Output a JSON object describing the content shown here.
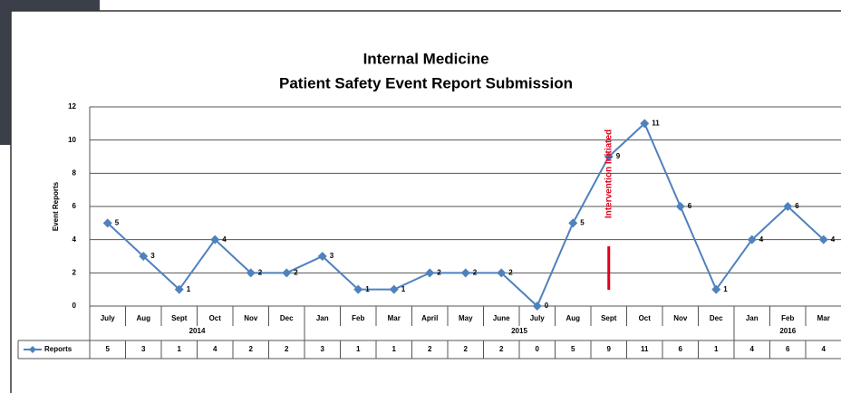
{
  "chart_data": {
    "type": "line",
    "title": "Internal Medicine",
    "subtitle": "Patient Safety Event Report Submission",
    "ylabel": "Event Reports",
    "groups": [
      {
        "name": "2014",
        "categories": [
          "July",
          "Aug",
          "Sept",
          "Oct",
          "Nov",
          "Dec"
        ]
      },
      {
        "name": "2015",
        "categories": [
          "Jan",
          "Feb",
          "Mar",
          "April",
          "May",
          "June",
          "July",
          "Aug",
          "Sept",
          "Oct",
          "Nov",
          "Dec"
        ]
      },
      {
        "name": "2016",
        "categories": [
          "Jan",
          "Feb",
          "Mar"
        ]
      }
    ],
    "series": [
      {
        "name": "Reports",
        "color": "#4f81bd",
        "values": [
          5,
          3,
          1,
          4,
          2,
          2,
          3,
          1,
          1,
          2,
          2,
          2,
          0,
          5,
          9,
          11,
          6,
          1,
          4,
          6,
          4
        ]
      }
    ],
    "ylim": [
      0,
      12
    ],
    "yticks": [
      0,
      2,
      4,
      6,
      8,
      10,
      12
    ],
    "grid": true,
    "annotations": [
      {
        "text": "Intervention Initiated",
        "group": "2015",
        "category": "Sept",
        "color": "#e0001b"
      }
    ]
  }
}
